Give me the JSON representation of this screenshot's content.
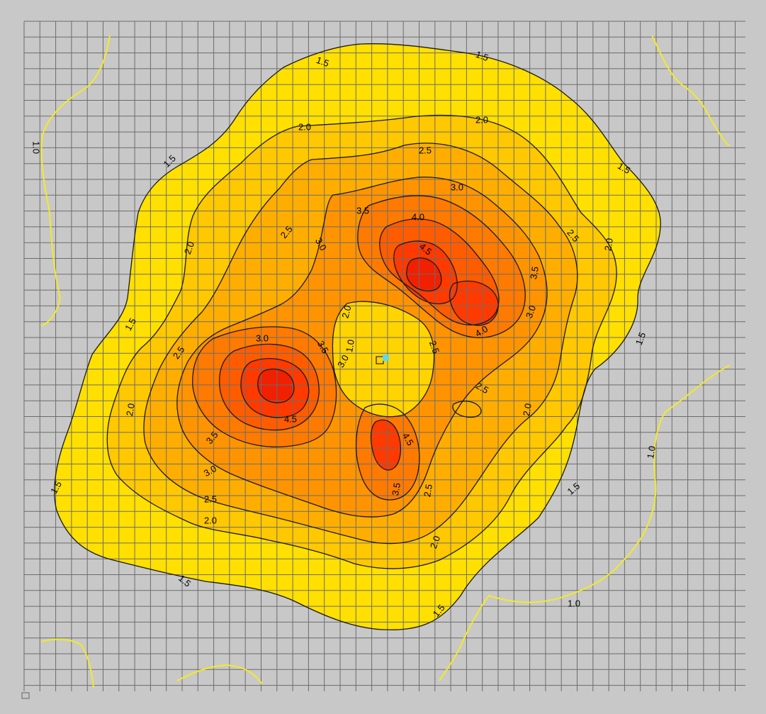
{
  "chart_data": {
    "type": "contour",
    "grid": true,
    "colors": {
      "canvas_bg": "#c8c8c8",
      "grid_line": "#6c6c6c",
      "contour_line": "#1a1a1a",
      "outer_line": "#f2ea2a",
      "marker": "#5fd8ee"
    },
    "fill_levels": [
      {
        "level": 1.5,
        "color": "#ffe000"
      },
      {
        "level": 2.0,
        "color": "#ffc800"
      },
      {
        "level": 2.5,
        "color": "#ffae00"
      },
      {
        "level": 3.0,
        "color": "#ff9400"
      },
      {
        "level": 3.5,
        "color": "#ff7a00"
      },
      {
        "level": 4.0,
        "color": "#ff5c00"
      },
      {
        "level": 4.5,
        "color": "#ff3a00"
      },
      {
        "level": 5.0,
        "color": "#f02000"
      }
    ],
    "contour_labels": [
      "1.5",
      "1.5",
      "1.5",
      "1.5",
      "1.5",
      "1.5",
      "1.5",
      "1.5",
      "1.5",
      "1.5",
      "2.0",
      "2.0",
      "2.0",
      "2.0",
      "2.0",
      "2.0",
      "2.0",
      "2.0",
      "2.0",
      "2.5",
      "2.5",
      "2.5",
      "2.5",
      "2.5",
      "2.5",
      "2.5",
      "2.5",
      "3.0",
      "3.0",
      "3.0",
      "3.0",
      "3.0",
      "3.0",
      "3.5",
      "3.5",
      "3.5",
      "3.5",
      "3.5",
      "4.0",
      "4.0",
      "4.5",
      "4.5",
      "4.5",
      "1.0",
      "1.0",
      "1.0",
      "1.0"
    ]
  }
}
